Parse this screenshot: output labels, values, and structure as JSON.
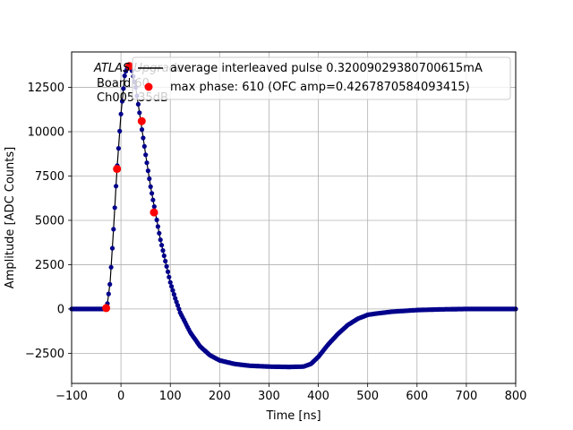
{
  "chart_data": {
    "type": "scatter",
    "title": "",
    "xlabel": "Time [ns]",
    "ylabel": "Amplitude [ADC Counts]",
    "xlim": [
      -100,
      800
    ],
    "ylim": [
      -4200,
      14500
    ],
    "grid": true,
    "x_ticks": [
      -100,
      0,
      100,
      200,
      300,
      400,
      500,
      600,
      700,
      800
    ],
    "y_ticks": [
      -2500,
      0,
      2500,
      5000,
      7500,
      10000,
      12500
    ],
    "x_tick_labels": [
      "−100",
      "0",
      "100",
      "200",
      "300",
      "400",
      "500",
      "600",
      "700",
      "800"
    ],
    "y_tick_labels": [
      "−2500",
      "0",
      "2500",
      "5000",
      "7500",
      "10000",
      "12500"
    ],
    "annotations": [
      "ATLAS Upgrade",
      "Board 60",
      "Ch005 35dB"
    ],
    "legend_position": "top-right",
    "series": [
      {
        "name": "average interleaved pulse 0.32009029380700615mA",
        "color": "#00008b",
        "line_color": "#000000",
        "marker": "circle",
        "points": [
          [
            -100,
            0
          ],
          [
            -50,
            0
          ],
          [
            -35,
            0
          ],
          [
            -28,
            200
          ],
          [
            -22,
            1500
          ],
          [
            -15,
            4500
          ],
          [
            -8,
            7900
          ],
          [
            0,
            11000
          ],
          [
            8,
            13300
          ],
          [
            15,
            13700
          ],
          [
            22,
            13500
          ],
          [
            30,
            12500
          ],
          [
            40,
            10600
          ],
          [
            50,
            8700
          ],
          [
            60,
            6900
          ],
          [
            70,
            5400
          ],
          [
            80,
            3900
          ],
          [
            90,
            2700
          ],
          [
            100,
            1500
          ],
          [
            110,
            600
          ],
          [
            120,
            -200
          ],
          [
            140,
            -1300
          ],
          [
            160,
            -2100
          ],
          [
            180,
            -2600
          ],
          [
            200,
            -2900
          ],
          [
            230,
            -3100
          ],
          [
            260,
            -3200
          ],
          [
            300,
            -3250
          ],
          [
            340,
            -3270
          ],
          [
            370,
            -3250
          ],
          [
            385,
            -3100
          ],
          [
            400,
            -2700
          ],
          [
            420,
            -2000
          ],
          [
            440,
            -1400
          ],
          [
            460,
            -900
          ],
          [
            480,
            -550
          ],
          [
            500,
            -330
          ],
          [
            520,
            -250
          ],
          [
            550,
            -150
          ],
          [
            600,
            -60
          ],
          [
            650,
            -20
          ],
          [
            700,
            0
          ],
          [
            800,
            0
          ]
        ]
      },
      {
        "name": "max phase: 610 (OFC amp=0.4267870584093415)",
        "color": "#ff0000",
        "marker": "circle",
        "points": [
          [
            -30,
            50
          ],
          [
            -8,
            7900
          ],
          [
            17,
            13700
          ],
          [
            42,
            10600
          ],
          [
            67,
            5450
          ]
        ]
      }
    ]
  }
}
